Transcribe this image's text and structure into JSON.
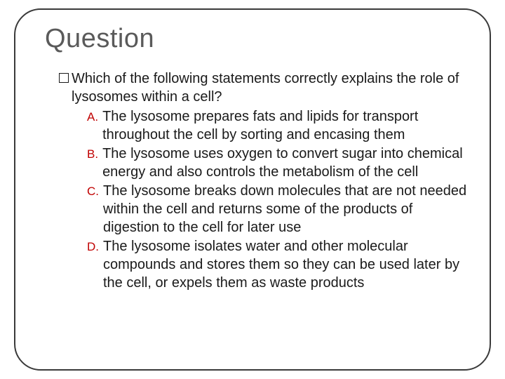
{
  "slide": {
    "title": "Question",
    "title_color": "#5a5a5a",
    "title_fontsize": 38,
    "frame_border_color": "#3a3a3a",
    "frame_border_radius": 38,
    "background_color": "#ffffff"
  },
  "question": {
    "stem": "Which of the following statements correctly explains the role of lysosomes within a cell?",
    "stem_color": "#1a1a1a",
    "stem_fontsize": 20,
    "bullet_style": "hollow-square",
    "options": [
      {
        "letter": "A.",
        "text": "The lysosome prepares fats and lipids for transport throughout the cell by sorting and encasing them"
      },
      {
        "letter": "B.",
        "text": "The lysosome uses oxygen to convert sugar into chemical energy and also controls the metabolism of the cell"
      },
      {
        "letter": "C.",
        "text": "The lysosome breaks down molecules that are not needed within the cell and returns some of the products of digestion to the cell for later use"
      },
      {
        "letter": "D.",
        "text": "The lysosome isolates water and other molecular compounds and stores them so they can be used later by the cell, or expels them as waste products"
      }
    ],
    "option_letter_color": "#c00000",
    "option_letter_fontsize": 17,
    "option_text_color": "#1a1a1a",
    "option_text_fontsize": 20
  }
}
